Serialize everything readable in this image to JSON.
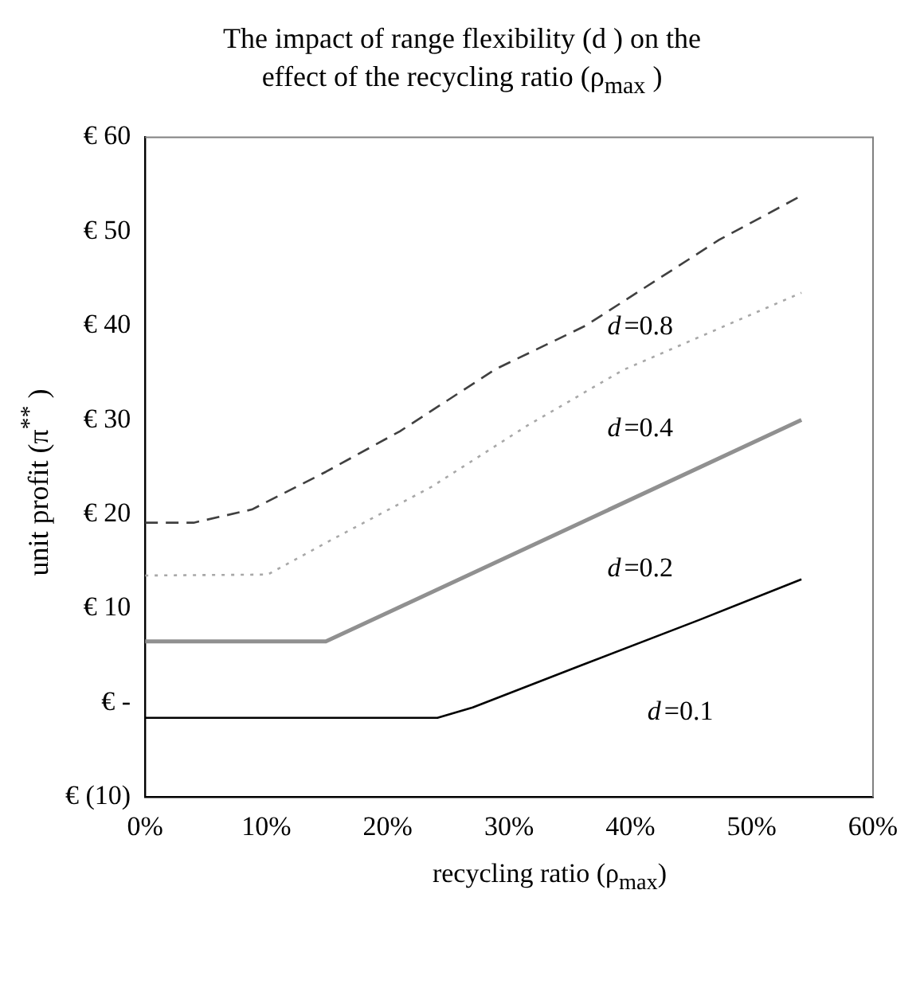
{
  "chart_data": {
    "type": "line",
    "title": "The impact of range flexibility (d ) on the effect of the recycling ratio (ρ$_{max}$ )",
    "xlabel": "recycling ratio (ρ$_{max}$)",
    "ylabel": "unit profit (π$^{**}$ )",
    "xlim": [
      0,
      60
    ],
    "xticks": [
      {
        "value": 0,
        "label": "0%"
      },
      {
        "value": 10,
        "label": "10%"
      },
      {
        "value": 20,
        "label": "20%"
      },
      {
        "value": 30,
        "label": "30%"
      },
      {
        "value": 40,
        "label": "40%"
      },
      {
        "value": 50,
        "label": "50%"
      },
      {
        "value": 60,
        "label": "60%"
      }
    ],
    "ylim": [
      -10,
      60
    ],
    "yticks": [
      {
        "value": -10,
        "label": "€ (10)"
      },
      {
        "value": 0,
        "label": "€ -"
      },
      {
        "value": 10,
        "label": "€ 10"
      },
      {
        "value": 20,
        "label": "€ 20"
      },
      {
        "value": 30,
        "label": "€ 30"
      },
      {
        "value": 40,
        "label": "€ 40"
      },
      {
        "value": 50,
        "label": "€ 50"
      },
      {
        "value": 60,
        "label": "€ 60"
      }
    ],
    "grid": false,
    "legend": false,
    "marker": "none",
    "series": [
      {
        "color": "#404040",
        "line_style": "dashed",
        "x": [
          0,
          4,
          8.8,
          14.9,
          21,
          28.9,
          36.3,
          47.3,
          54.1
        ],
        "values": [
          19.1,
          19.1,
          20.5,
          24.5,
          28.8,
          35.4,
          40,
          49.1,
          53.8
        ]
      },
      {
        "color": "#a8a8a8",
        "line_style": "dotted",
        "x": [
          0,
          10.1,
          15.1,
          23.6,
          31.5,
          39.4,
          54.1
        ],
        "values": [
          13.5,
          13.6,
          17.1,
          22.9,
          29.4,
          35.3,
          43.5
        ]
      },
      {
        "color": "#909090",
        "line_style": "solid",
        "x": [
          0,
          14.9,
          54.1
        ],
        "values": [
          6.5,
          6.5,
          30
        ]
      },
      {
        "color": "#000000",
        "line_style": "solid",
        "x": [
          0,
          24.1,
          27,
          36,
          45.7,
          54.1
        ],
        "values": [
          -1.6,
          -1.6,
          -0.5,
          4,
          8.8,
          13.1
        ]
      }
    ],
    "annotations": [
      "d=0.8",
      "d=0.4",
      "d=0.2",
      "d=0.1"
    ]
  }
}
